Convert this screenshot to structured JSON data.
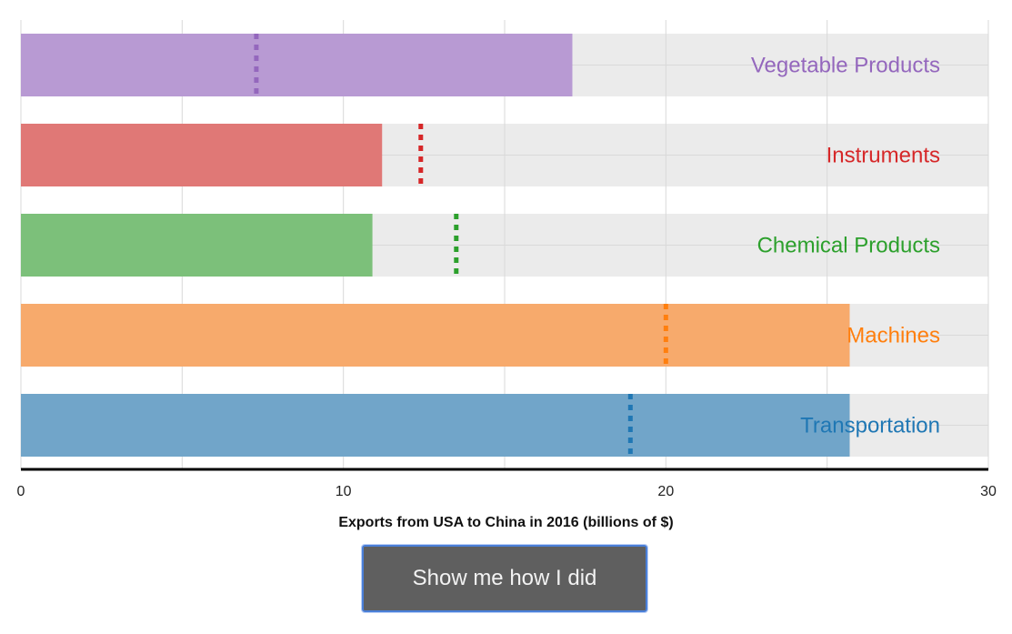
{
  "chart_data": {
    "type": "bar",
    "orientation": "horizontal",
    "title": "",
    "xlabel": "Exports from USA to China in 2016 (billions of $)",
    "ylabel": "",
    "xlim": [
      0,
      30
    ],
    "x_ticks": [
      0,
      10,
      20,
      30
    ],
    "grid": true,
    "categories": [
      "Vegetable Products",
      "Instruments",
      "Chemical Products",
      "Machines",
      "Transportation"
    ],
    "values": [
      17.1,
      11.2,
      10.9,
      25.7,
      25.7
    ],
    "guesses": [
      7.3,
      12.4,
      13.5,
      20.0,
      18.9
    ],
    "colors": [
      "#9467bd",
      "#d62728",
      "#2ca02c",
      "#ff7f0e",
      "#1f77b4"
    ],
    "bar_colors": [
      "#b89ad3",
      "#e07876",
      "#7cc07a",
      "#f7aa6c",
      "#71a5c9"
    ]
  },
  "button": {
    "label": "Show me how I did"
  }
}
